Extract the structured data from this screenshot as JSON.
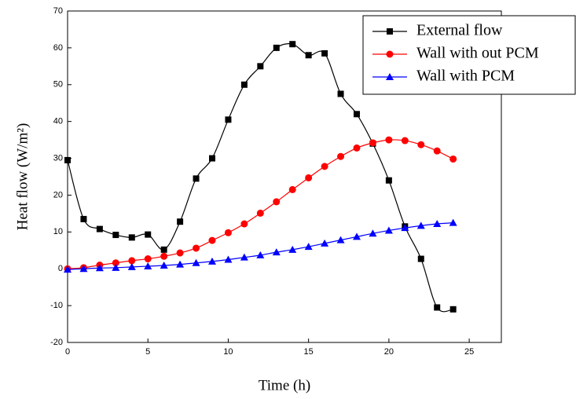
{
  "chart_data": {
    "type": "line",
    "x_label": "Time (h)",
    "y_label": "Heat flow (W/m²)",
    "x": [
      0,
      1,
      2,
      3,
      4,
      5,
      6,
      7,
      8,
      9,
      10,
      11,
      12,
      13,
      14,
      15,
      16,
      17,
      18,
      19,
      20,
      21,
      22,
      23,
      24
    ],
    "series": [
      {
        "name": "External flow",
        "color": "#000000",
        "marker": "square",
        "values": [
          29.5,
          13.5,
          10.8,
          9.2,
          8.5,
          9.3,
          5.2,
          12.8,
          24.5,
          30,
          40.5,
          50,
          55,
          60,
          61,
          58,
          58.5,
          47.5,
          42,
          34,
          24,
          11.5,
          2.7,
          -10.5,
          -11
        ]
      },
      {
        "name": "Wall with out PCM",
        "color": "#ff0000",
        "marker": "circle",
        "values": [
          0,
          0.3,
          1,
          1.6,
          2.2,
          2.7,
          3.4,
          4.3,
          5.6,
          7.7,
          9.8,
          12.2,
          15.1,
          18.2,
          21.5,
          24.7,
          27.8,
          30.5,
          32.8,
          34.2,
          35,
          34.8,
          33.7,
          32,
          29.8
        ]
      },
      {
        "name": "Wall with PCM",
        "color": "#0000ff",
        "marker": "triangle",
        "values": [
          -0.2,
          0,
          0.2,
          0.3,
          0.5,
          0.7,
          0.9,
          1.2,
          1.6,
          2,
          2.5,
          3.1,
          3.7,
          4.5,
          5.2,
          6,
          6.9,
          7.8,
          8.7,
          9.6,
          10.4,
          11.1,
          11.7,
          12.2,
          12.5
        ]
      }
    ],
    "xlim": [
      0,
      27
    ],
    "ylim": [
      -20,
      70
    ],
    "xticks": [
      0,
      5,
      10,
      15,
      20,
      25
    ],
    "yticks": [
      -20,
      -10,
      0,
      10,
      20,
      30,
      40,
      50,
      60,
      70
    ],
    "legend": "upper right"
  }
}
